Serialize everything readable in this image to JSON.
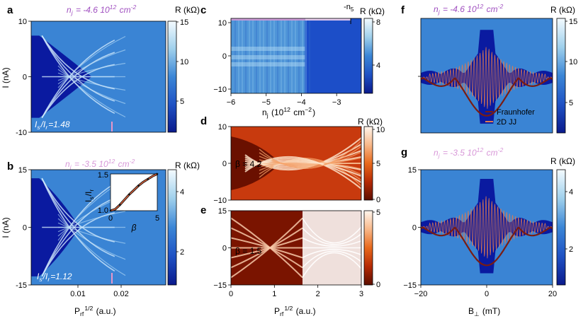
{
  "colors": {
    "cmap_blue": [
      "#0a1a8c",
      "#1f52c4",
      "#3b86d6",
      "#9fd0ec",
      "#f4fbff"
    ],
    "cmap_red": [
      "#5c0e00",
      "#b52a05",
      "#e8691c",
      "#f8b889",
      "#fff6ee"
    ],
    "annotation_purple": "#a050c0",
    "annotation_pink": "#d898d8",
    "fit_fraunhofer": "#7a1c12",
    "fit_2djj": "#e07a50",
    "inset_curve": "#e0623a"
  },
  "chart_data": [
    {
      "id": "a",
      "panel_label": "a",
      "type": "heatmap",
      "annotation_top": "n_j = -4.6 10^12 cm^-2",
      "annotation_top_parts": {
        "n": "n",
        "sub": "j",
        "rest": " = -4.6 10",
        "sup": "12",
        "unit": " cm",
        "unit_sup": "-2"
      },
      "annotation_bottom_parts": {
        "a": "I",
        "a_sub": "s",
        "b": "/I",
        "b_sub": "r",
        "c": "=1.48"
      },
      "ylabel": "I (nA)",
      "ylim": [
        -10,
        10
      ],
      "yticks": [
        "10",
        "0",
        "-10"
      ],
      "colorbar": {
        "label": "R (kΩ)",
        "range": [
          0,
          15
        ],
        "ticks": [
          "15",
          "10",
          "5"
        ]
      }
    },
    {
      "id": "b",
      "panel_label": "b",
      "type": "heatmap",
      "annotation_top_parts": {
        "n": "n",
        "sub": "j",
        "rest": " = -3.5 10",
        "sup": "12",
        "unit": " cm",
        "unit_sup": "-2"
      },
      "annotation_bottom_parts": {
        "a": "I",
        "a_sub": "s",
        "b": "/I",
        "b_sub": "r",
        "c": "=1.12"
      },
      "ylabel": "I (nA)",
      "ylim": [
        -15,
        15
      ],
      "yticks": [
        "15",
        "0",
        "-15"
      ],
      "xlabel_parts": {
        "a": "P",
        "sub": "rf",
        "sup": "1/2",
        "b": " (a.u.)"
      },
      "xticks": [
        "0.01",
        "0.02"
      ],
      "colorbar": {
        "label": "R (kΩ)",
        "range": [
          0,
          5
        ],
        "ticks": [
          "4",
          "2"
        ]
      },
      "inset": {
        "type": "line",
        "ylabel_parts": {
          "a": "I",
          "a_sub": "s",
          "b": "/I",
          "b_sub": "r"
        },
        "xlabel": "β",
        "xlim": [
          0,
          5
        ],
        "ylim": [
          1.0,
          1.5
        ],
        "xticks": [
          "0",
          "5"
        ],
        "yticks": [
          "1.5",
          "1.0"
        ],
        "x": [
          0,
          0.5,
          1.0,
          1.5,
          2.0,
          2.5,
          3.0,
          3.5,
          4.0,
          4.5,
          5.0
        ],
        "y": [
          1.0,
          1.02,
          1.08,
          1.15,
          1.22,
          1.28,
          1.34,
          1.39,
          1.43,
          1.47,
          1.5
        ]
      }
    },
    {
      "id": "c",
      "panel_label": "c",
      "type": "heatmap",
      "marker_label": "-n",
      "marker_sub": "5",
      "xlabel_parts": {
        "a": "n",
        "sub": "j",
        "b": "  (10",
        "sup": "12",
        "c": " cm",
        "sup2": "−2",
        "d": ")"
      },
      "xlim": [
        -6,
        -2.3
      ],
      "xticks": [
        "−6",
        "−5",
        "−4",
        "−3"
      ],
      "ylim": [
        -10,
        10
      ],
      "yticks": [
        "10",
        "0",
        "−10"
      ],
      "colorbar": {
        "label": "R (kΩ)",
        "range": [
          0,
          8
        ],
        "ticks": [
          "8",
          "4"
        ]
      }
    },
    {
      "id": "d",
      "panel_label": "d",
      "type": "heatmap",
      "label": "β = 4.2",
      "ylim": [
        -10,
        10
      ],
      "yticks": [
        "10",
        "0",
        "−10"
      ],
      "colorbar": {
        "label": "R (kΩ)",
        "range": [
          0,
          10
        ],
        "ticks": [
          "10",
          "5",
          "0"
        ]
      }
    },
    {
      "id": "e",
      "panel_label": "e",
      "type": "heatmap",
      "label": "β = 1.5",
      "ylim": [
        -15,
        15
      ],
      "yticks": [
        "15",
        "0",
        "−15"
      ],
      "xlim": [
        0,
        3
      ],
      "xticks": [
        "0",
        "1",
        "2",
        "3"
      ],
      "xlabel_parts": {
        "a": "P",
        "sub": "rf",
        "sup": "1/2",
        "b": " (a.u.)"
      },
      "colorbar": {
        "range": [
          0,
          5
        ],
        "ticks": [
          "5",
          "0"
        ]
      }
    },
    {
      "id": "f",
      "panel_label": "f",
      "type": "heatmap",
      "annotation_top_parts": {
        "n": "n",
        "sub": "j",
        "rest": " = -4.6 10",
        "sup": "12",
        "unit": " cm",
        "unit_sup": "-2"
      },
      "legend": [
        {
          "name": "Fraunhofer",
          "color": "#7a1c12"
        },
        {
          "name": "2D JJ",
          "color": "#e07a50"
        }
      ],
      "colorbar": {
        "label": "R (kΩ)",
        "range": [
          0,
          15
        ],
        "ticks": [
          "15",
          "10",
          "5"
        ]
      }
    },
    {
      "id": "g",
      "panel_label": "g",
      "type": "heatmap",
      "annotation_top_parts": {
        "n": "n",
        "sub": "j",
        "rest": " = -3.5 10",
        "sup": "12",
        "unit": " cm",
        "unit_sup": "-2"
      },
      "ylim": [
        -15,
        15
      ],
      "yticks": [
        "15",
        "0",
        "−15"
      ],
      "xlim": [
        -20,
        20
      ],
      "xticks": [
        "−20",
        "0",
        "20"
      ],
      "xlabel_parts": {
        "a": "B",
        "sub": "⊥",
        "b": " (mT)"
      },
      "colorbar": {
        "label": "R (kΩ)",
        "range": [
          0,
          5
        ],
        "ticks": [
          "4",
          "2"
        ]
      }
    }
  ]
}
